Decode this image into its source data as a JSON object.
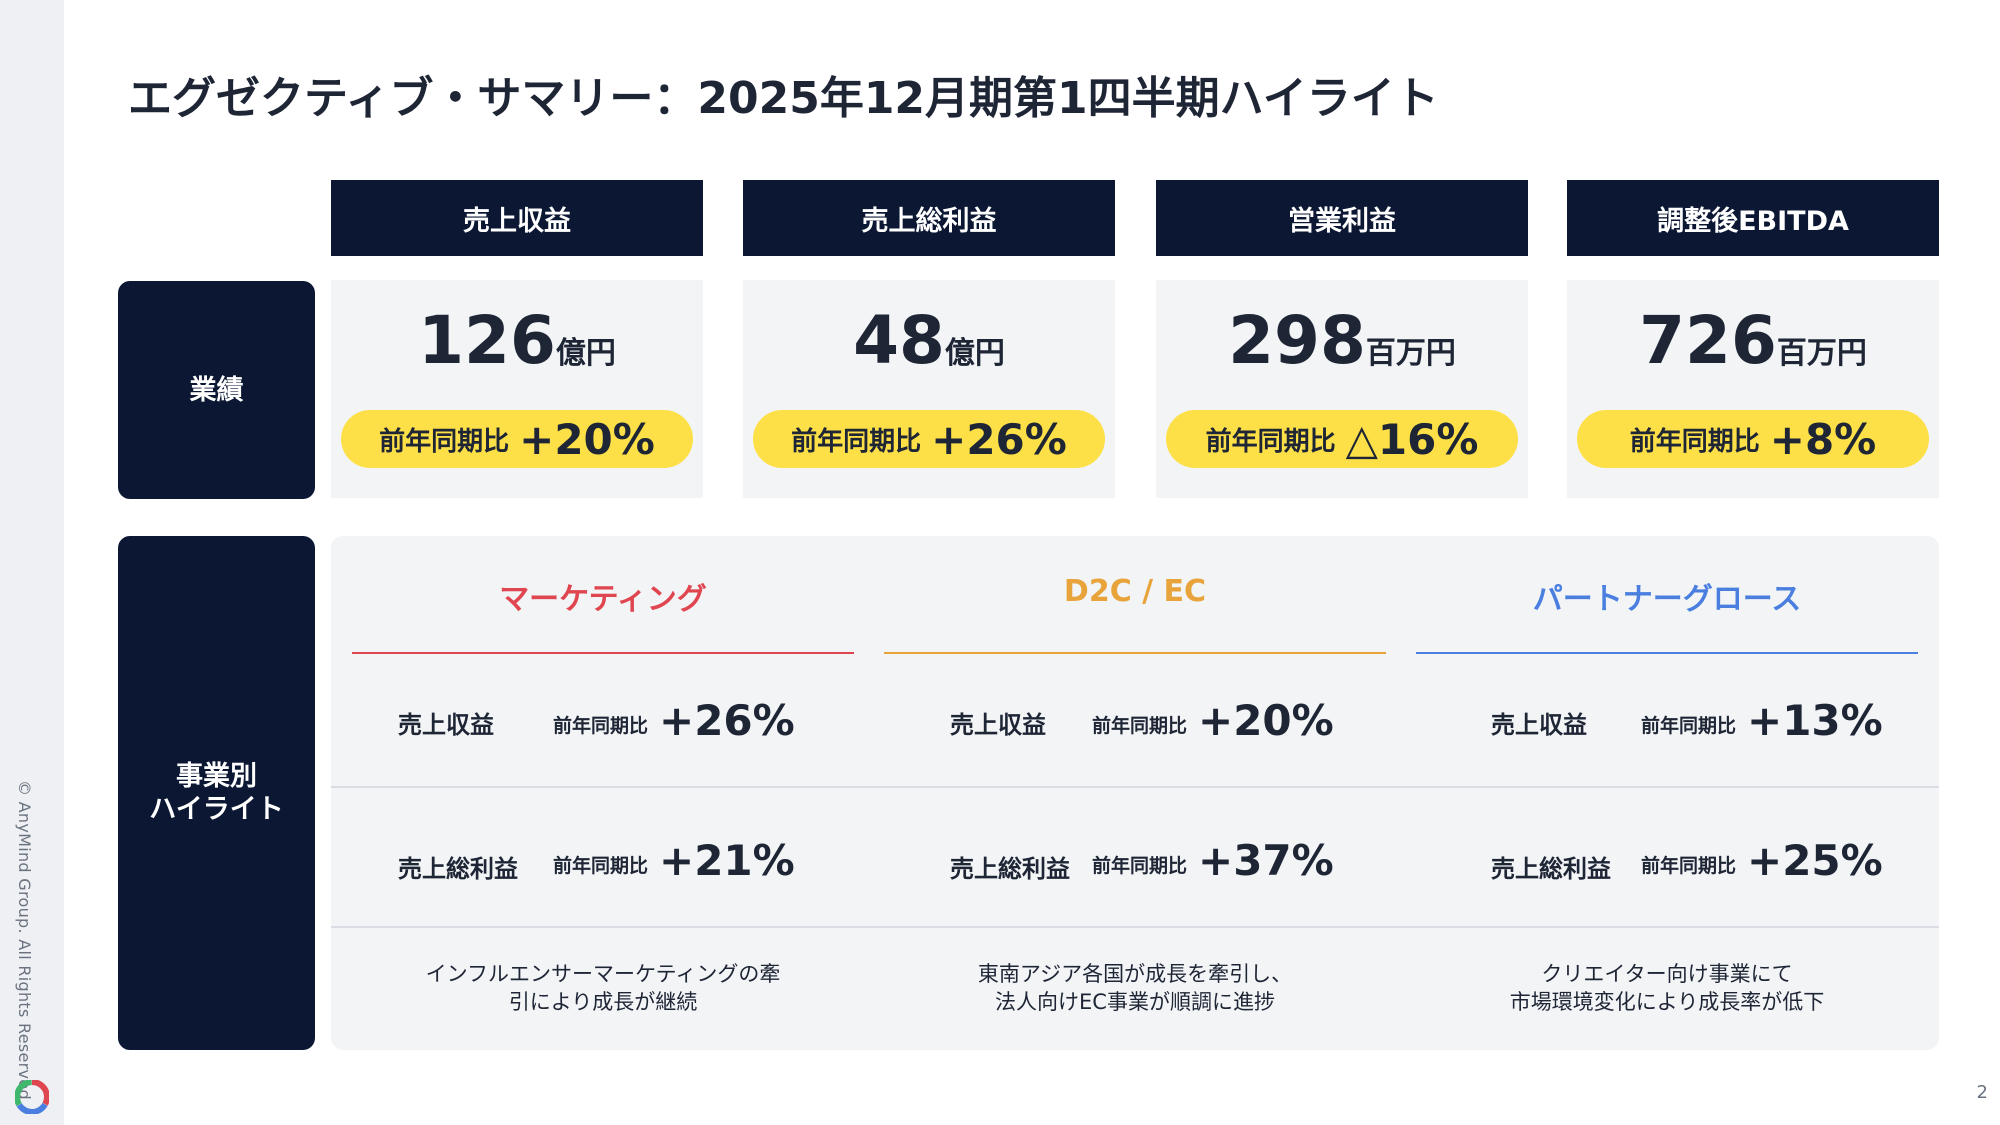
{
  "title": "エグゼクティブ・サマリー：2025年12月期第1四半期ハイライト",
  "copyright": "© AnyMind Group. All Rights Reserved.",
  "page_number": "2",
  "row_labels": {
    "results": "業績",
    "segment_highlights": "事業別\nハイライト"
  },
  "metrics": [
    {
      "header": "売上収益",
      "value": "126",
      "unit": "億円",
      "yoy_label": "前年同期比",
      "yoy_value": "+20%"
    },
    {
      "header": "売上総利益",
      "value": "48",
      "unit": "億円",
      "yoy_label": "前年同期比",
      "yoy_value": "+26%"
    },
    {
      "header": "営業利益",
      "value": "298",
      "unit": "百万円",
      "yoy_label": "前年同期比",
      "yoy_value": "△16%"
    },
    {
      "header": "調整後EBITDA",
      "value": "726",
      "unit": "百万円",
      "yoy_label": "前年同期比",
      "yoy_value": "+8%"
    }
  ],
  "segments": [
    {
      "name": "マーケティング",
      "color": "#e0464f",
      "revenue_label": "売上収益",
      "revenue_yoy_label": "前年同期比",
      "revenue_yoy": "+26%",
      "gross_profit_label": "売上総利益",
      "gross_profit_yoy_label": "前年同期比",
      "gross_profit_yoy": "+21%",
      "note": "インフルエンサーマーケティングの牽\n引により成長が継続"
    },
    {
      "name": "D2C / EC",
      "color": "#e8a33b",
      "revenue_label": "売上収益",
      "revenue_yoy_label": "前年同期比",
      "revenue_yoy": "+20%",
      "gross_profit_label": "売上総利益",
      "gross_profit_yoy_label": "前年同期比",
      "gross_profit_yoy": "+37%",
      "note": "東南アジア各国が成長を牽引し、\n法人向けEC事業が順調に進捗"
    },
    {
      "name": "パートナーグロース",
      "color": "#4a7fe0",
      "revenue_label": "売上収益",
      "revenue_yoy_label": "前年同期比",
      "revenue_yoy": "+13%",
      "gross_profit_label": "売上総利益",
      "gross_profit_yoy_label": "前年同期比",
      "gross_profit_yoy": "+25%",
      "note": "クリエイター向け事業にて\n市場環境変化により成長率が低下"
    }
  ]
}
